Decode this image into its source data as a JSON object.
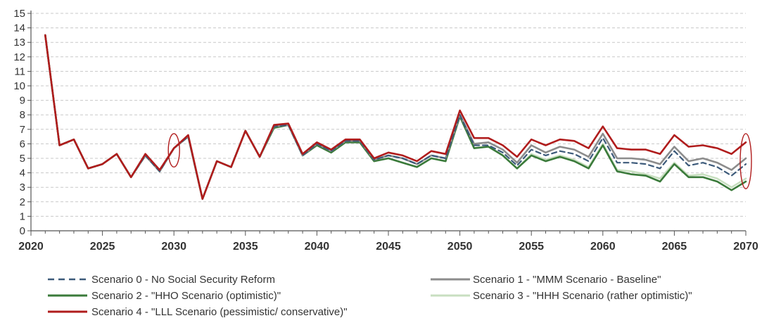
{
  "chart_data": {
    "type": "line",
    "title": "",
    "xlabel": "",
    "ylabel": "",
    "xlim": [
      2020,
      2070
    ],
    "ylim": [
      0,
      15
    ],
    "x_ticks": [
      "2020",
      "2025",
      "2030",
      "2035",
      "2040",
      "2045",
      "2050",
      "2055",
      "2060",
      "2065",
      "2070"
    ],
    "y_ticks": [
      "0",
      "1",
      "2",
      "3",
      "4",
      "5",
      "6",
      "7",
      "8",
      "9",
      "10",
      "11",
      "12",
      "13",
      "14",
      "15"
    ],
    "grid": "horizontal dashed",
    "legend_position": "bottom",
    "x": [
      2021,
      2022,
      2023,
      2024,
      2025,
      2026,
      2027,
      2028,
      2029,
      2030,
      2031,
      2032,
      2033,
      2034,
      2035,
      2036,
      2037,
      2038,
      2039,
      2040,
      2041,
      2042,
      2043,
      2044,
      2045,
      2046,
      2047,
      2048,
      2049,
      2050,
      2051,
      2052,
      2053,
      2054,
      2055,
      2056,
      2057,
      2058,
      2059,
      2060,
      2061,
      2062,
      2063,
      2064,
      2065,
      2066,
      2067,
      2068,
      2069,
      2070
    ],
    "series": [
      {
        "name": "Scenario 3 - \"HHH Scenario (rather optimistic)\"",
        "color": "#c8dfc0",
        "dash": "solid",
        "values": [
          13.5,
          5.9,
          6.3,
          4.3,
          4.6,
          5.3,
          3.7,
          5.2,
          4.1,
          5.7,
          6.5,
          2.2,
          4.8,
          4.4,
          6.9,
          5.1,
          7.1,
          7.3,
          5.2,
          5.9,
          5.4,
          6.1,
          6.1,
          4.8,
          5.0,
          4.7,
          4.4,
          5.0,
          4.8,
          7.9,
          5.7,
          5.8,
          5.2,
          4.3,
          5.3,
          4.9,
          5.2,
          4.9,
          4.4,
          6.0,
          4.2,
          4.1,
          3.9,
          3.6,
          4.7,
          3.8,
          3.9,
          3.6,
          3.0,
          3.6
        ]
      },
      {
        "name": "Scenario 2 - \"HHO Scenario (optimistic)\"",
        "color": "#3a7a3a",
        "dash": "solid",
        "values": [
          13.5,
          5.9,
          6.3,
          4.3,
          4.6,
          5.3,
          3.7,
          5.2,
          4.1,
          5.7,
          6.5,
          2.2,
          4.8,
          4.4,
          6.9,
          5.1,
          7.1,
          7.3,
          5.2,
          5.9,
          5.4,
          6.1,
          6.1,
          4.8,
          5.0,
          4.7,
          4.4,
          5.0,
          4.8,
          7.9,
          5.7,
          5.8,
          5.2,
          4.3,
          5.2,
          4.8,
          5.1,
          4.8,
          4.3,
          5.9,
          4.1,
          3.9,
          3.8,
          3.4,
          4.6,
          3.7,
          3.7,
          3.4,
          2.8,
          3.4
        ]
      },
      {
        "name": "Scenario 1 - \"MMM Scenario - Baseline\"",
        "color": "#8c8c8c",
        "dash": "solid",
        "values": [
          13.5,
          5.9,
          6.3,
          4.3,
          4.6,
          5.3,
          3.7,
          5.2,
          4.1,
          5.7,
          6.5,
          2.2,
          4.8,
          4.4,
          6.9,
          5.1,
          7.2,
          7.3,
          5.2,
          6.0,
          5.5,
          6.2,
          6.2,
          4.9,
          5.2,
          5.0,
          4.6,
          5.2,
          5.0,
          8.0,
          6.0,
          6.1,
          5.6,
          4.7,
          5.9,
          5.4,
          5.8,
          5.6,
          5.1,
          6.7,
          5.0,
          5.0,
          4.9,
          4.6,
          5.8,
          4.8,
          5.0,
          4.7,
          4.2,
          5.0
        ]
      },
      {
        "name": "Scenario 0 - No Social Security Reform",
        "color": "#3c5a7a",
        "dash": "dashed",
        "values": [
          13.5,
          5.9,
          6.3,
          4.3,
          4.6,
          5.3,
          3.7,
          5.2,
          4.1,
          5.7,
          6.5,
          2.2,
          4.8,
          4.4,
          6.9,
          5.1,
          7.2,
          7.3,
          5.2,
          6.0,
          5.5,
          6.2,
          6.2,
          4.9,
          5.2,
          5.0,
          4.6,
          5.2,
          5.0,
          8.0,
          5.9,
          5.9,
          5.4,
          4.5,
          5.6,
          5.2,
          5.5,
          5.3,
          4.8,
          6.4,
          4.7,
          4.7,
          4.6,
          4.3,
          5.5,
          4.5,
          4.7,
          4.4,
          3.8,
          4.6
        ]
      },
      {
        "name": "Scenario 4 - \"LLL Scenario (pessimistic/ conservative)\"",
        "color": "#b01c1c",
        "dash": "solid",
        "values": [
          13.5,
          5.9,
          6.3,
          4.3,
          4.6,
          5.3,
          3.7,
          5.3,
          4.2,
          5.7,
          6.6,
          2.2,
          4.8,
          4.4,
          6.9,
          5.1,
          7.3,
          7.4,
          5.3,
          6.1,
          5.6,
          6.3,
          6.3,
          5.0,
          5.4,
          5.2,
          4.8,
          5.5,
          5.3,
          8.3,
          6.4,
          6.4,
          5.9,
          5.1,
          6.3,
          5.9,
          6.3,
          6.2,
          5.7,
          7.2,
          5.7,
          5.6,
          5.6,
          5.3,
          6.6,
          5.8,
          5.9,
          5.7,
          5.3,
          6.1
        ]
      }
    ],
    "legend": [
      {
        "label": "Scenario 0 - No Social Security Reform",
        "color": "#3c5a7a",
        "dash": "dashed"
      },
      {
        "label": "Scenario 1 - \"MMM Scenario - Baseline\"",
        "color": "#8c8c8c",
        "dash": "solid"
      },
      {
        "label": "Scenario 2 - \"HHO Scenario (optimistic)\"",
        "color": "#3a7a3a",
        "dash": "solid"
      },
      {
        "label": "Scenario 3 - \"HHH Scenario (rather optimistic)\"",
        "color": "#c8dfc0",
        "dash": "solid"
      },
      {
        "label": "Scenario 4 - \"LLL Scenario (pessimistic/ conservative)\"",
        "color": "#b01c1c",
        "dash": "solid"
      }
    ],
    "annotations": [
      {
        "shape": "ellipse",
        "color": "#b01c1c",
        "at_x": 2030,
        "y_range": [
          4.4,
          6.7
        ]
      },
      {
        "shape": "ellipse",
        "color": "#b01c1c",
        "at_x": 2070,
        "y_range": [
          2.9,
          6.7
        ]
      }
    ]
  }
}
